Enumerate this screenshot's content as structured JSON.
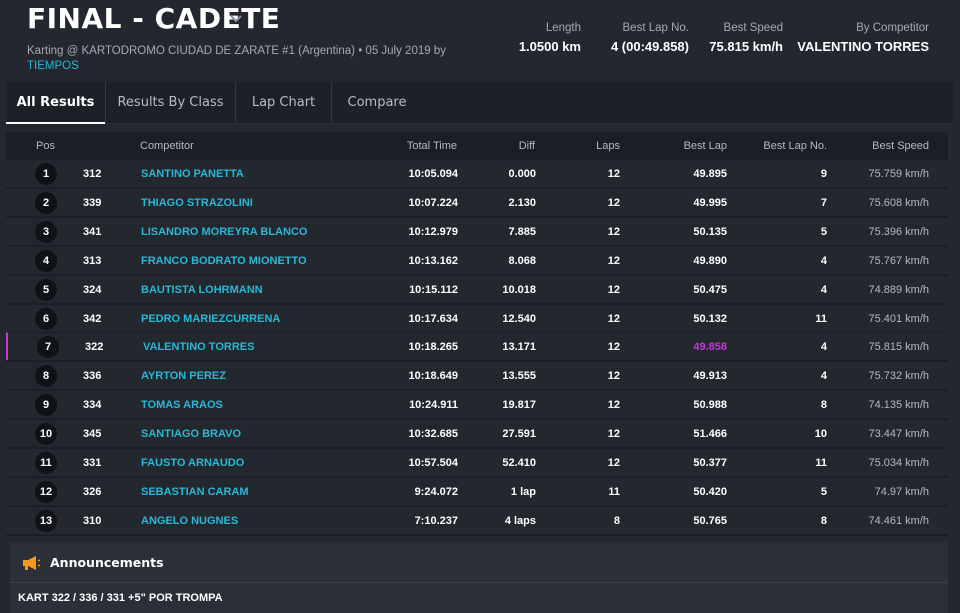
{
  "header": {
    "title": "FINAL - CADETE",
    "subtitle": "Karting @ KARTODROMO CIUDAD DE ZARATE #1 (Argentina) • 05 July 2019 by",
    "subtitle_link": "TIEMPOS",
    "stats": [
      {
        "label": "Length",
        "value": "1.0500 km"
      },
      {
        "label": "Best Lap No.",
        "value": "4 (00:49.858)"
      },
      {
        "label": "Best Speed",
        "value": "75.815 km/h"
      },
      {
        "label": "By Competitor",
        "value": "VALENTINO TORRES"
      }
    ]
  },
  "tabs": [
    {
      "label": "All Results",
      "active": true
    },
    {
      "label": "Results By Class",
      "active": false
    },
    {
      "label": "Lap Chart",
      "active": false
    },
    {
      "label": "Compare",
      "active": false
    }
  ],
  "table": {
    "columns": {
      "pos": "Pos",
      "competitor": "Competitor",
      "total_time": "Total Time",
      "diff": "Diff",
      "laps": "Laps",
      "best_lap": "Best Lap",
      "best_lap_no": "Best Lap No.",
      "best_speed": "Best Speed"
    },
    "rows": [
      {
        "pos": "1",
        "no": "312",
        "name": "SANTINO PANETTA",
        "total": "10:05.094",
        "diff": "0.000",
        "laps": "12",
        "best": "49.895",
        "bestno": "9",
        "speed": "75.759 km/h"
      },
      {
        "pos": "2",
        "no": "339",
        "name": "THIAGO STRAZOLINI",
        "total": "10:07.224",
        "diff": "2.130",
        "laps": "12",
        "best": "49.995",
        "bestno": "7",
        "speed": "75.608 km/h"
      },
      {
        "pos": "3",
        "no": "341",
        "name": "LISANDRO MOREYRA BLANCO",
        "total": "10:12.979",
        "diff": "7.885",
        "laps": "12",
        "best": "50.135",
        "bestno": "5",
        "speed": "75.396 km/h"
      },
      {
        "pos": "4",
        "no": "313",
        "name": "FRANCO BODRATO MIONETTO",
        "total": "10:13.162",
        "diff": "8.068",
        "laps": "12",
        "best": "49.890",
        "bestno": "4",
        "speed": "75.767 km/h"
      },
      {
        "pos": "5",
        "no": "324",
        "name": "BAUTISTA LOHRMANN",
        "total": "10:15.112",
        "diff": "10.018",
        "laps": "12",
        "best": "50.475",
        "bestno": "4",
        "speed": "74.889 km/h"
      },
      {
        "pos": "6",
        "no": "342",
        "name": "PEDRO MARIEZCURRENA",
        "total": "10:17.634",
        "diff": "12.540",
        "laps": "12",
        "best": "50.132",
        "bestno": "11",
        "speed": "75.401 km/h"
      },
      {
        "pos": "7",
        "no": "322",
        "name": "VALENTINO TORRES",
        "total": "10:18.265",
        "diff": "13.171",
        "laps": "12",
        "best": "49.858",
        "bestno": "4",
        "speed": "75.815 km/h",
        "highlight": true
      },
      {
        "pos": "8",
        "no": "336",
        "name": "AYRTON PEREZ",
        "total": "10:18.649",
        "diff": "13.555",
        "laps": "12",
        "best": "49.913",
        "bestno": "4",
        "speed": "75.732 km/h"
      },
      {
        "pos": "9",
        "no": "334",
        "name": "TOMAS ARAOS",
        "total": "10:24.911",
        "diff": "19.817",
        "laps": "12",
        "best": "50.988",
        "bestno": "8",
        "speed": "74.135 km/h"
      },
      {
        "pos": "10",
        "no": "345",
        "name": "SANTIAGO BRAVO",
        "total": "10:32.685",
        "diff": "27.591",
        "laps": "12",
        "best": "51.466",
        "bestno": "10",
        "speed": "73.447 km/h"
      },
      {
        "pos": "11",
        "no": "331",
        "name": "FAUSTO ARNAUDO",
        "total": "10:57.504",
        "diff": "52.410",
        "laps": "12",
        "best": "50.377",
        "bestno": "11",
        "speed": "75.034 km/h"
      },
      {
        "pos": "12",
        "no": "326",
        "name": "SEBASTIAN CARAM",
        "total": "9:24.072",
        "diff": "1 lap",
        "laps": "11",
        "best": "50.420",
        "bestno": "5",
        "speed": "74.97 km/h"
      },
      {
        "pos": "13",
        "no": "310",
        "name": "ANGELO NUGNES",
        "total": "7:10.237",
        "diff": "4 laps",
        "laps": "8",
        "best": "50.765",
        "bestno": "8",
        "speed": "74.461 km/h"
      }
    ]
  },
  "announcements": {
    "title": "Announcements",
    "icon": "megaphone-icon",
    "text": "KART 322 / 336 / 331 +5\" POR TROMPA"
  },
  "colors": {
    "accent_link": "#2bb7d6",
    "best_lap_highlight": "#c23bd6",
    "announcement_icon": "#f39a1e"
  }
}
